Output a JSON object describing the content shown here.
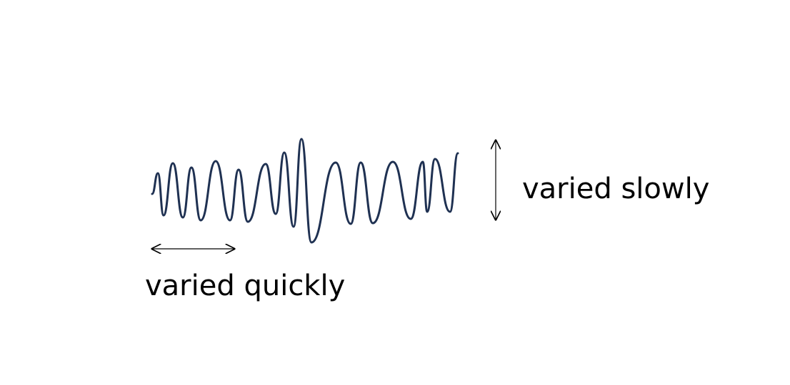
{
  "colors": {
    "background": "#ffffff",
    "wave": "#1f3152",
    "arrow": "#000000",
    "text": "#000000"
  },
  "labels": {
    "vertical": "varied slowly",
    "horizontal": "varied quickly"
  }
}
